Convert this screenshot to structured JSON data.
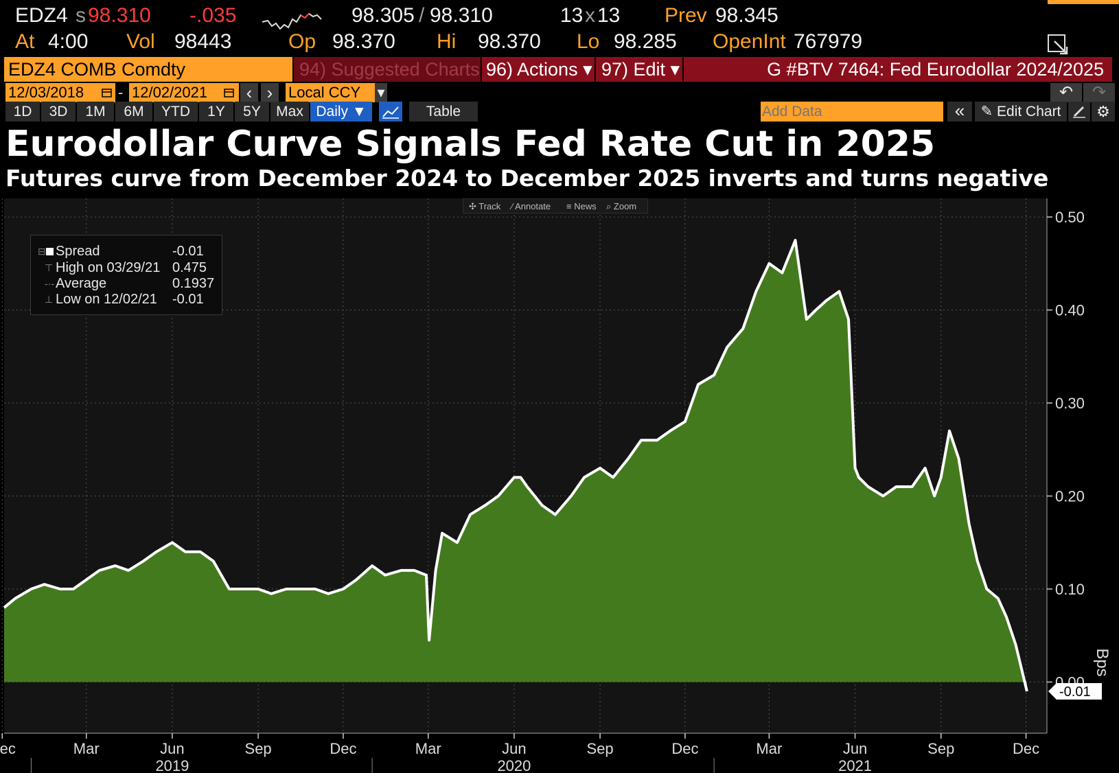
{
  "header": {
    "ticker": "EDZ4",
    "price_prefix": "s",
    "price": "98.310",
    "change": "-.035",
    "bid_ask_bid": "98.305",
    "bid_ask_sep": "/",
    "bid_ask_ask": "98.310",
    "size_a": "13",
    "size_sep": "x",
    "size_b": "13",
    "prev_label": "Prev",
    "prev_value": "98.345",
    "at_label": "At",
    "at_value": "4:00",
    "vol_label": "Vol",
    "vol_value": "98443",
    "op_label": "Op",
    "op_value": "98.370",
    "hi_label": "Hi",
    "hi_value": "98.370",
    "lo_label": "Lo",
    "lo_value": "98.285",
    "oi_label": "OpenInt",
    "oi_value": "767979"
  },
  "menubar": {
    "security": "EDZ4 COMB Comdty",
    "suggested": "94) Suggested Charts",
    "actions": "96) Actions ▾",
    "edit": "97) Edit ▾",
    "chart_id": "G #BTV 7464: Fed Eurodollar 2024/2025"
  },
  "datebar": {
    "start": "12/03/2018",
    "dash": "-",
    "end": "12/02/2021",
    "prev": "‹",
    "next": "›",
    "currency": "Local CCY",
    "currency_arrow": "▾",
    "undo": "↶",
    "redo": "↷"
  },
  "rangebar": {
    "ranges": [
      "1D",
      "3D",
      "1M",
      "6M",
      "YTD",
      "1Y",
      "5Y",
      "Max"
    ],
    "freq": "Daily ▼",
    "table": "Table",
    "add_data_placeholder": "Add Data",
    "collapse": "«",
    "edit_chart": "✎ Edit Chart",
    "settings": "⚙"
  },
  "toolbar": {
    "track": "✣ Track",
    "annotate": "⁄ Annotate",
    "news": "≡ News",
    "zoom": "⌕ Zoom"
  },
  "legend": {
    "spread_label": "Spread",
    "spread_value": "-0.01",
    "high_label": "High on 03/29/21",
    "high_value": "0.475",
    "avg_label": "Average",
    "avg_value": "0.1937",
    "low_label": "Low on 12/02/21",
    "low_value": "-0.01"
  },
  "colors": {
    "fill": "#437a1e",
    "line": "#ffffff",
    "background": "#000000",
    "plot_bg": "#141414",
    "accent": "#ffa028"
  },
  "chart_data": {
    "type": "area",
    "title": "Eurodollar Curve Signals Fed Rate Cut in 2025",
    "subtitle": "Futures curve from December 2024 to December 2025 inverts and turns negative",
    "xlabel": "",
    "ylabel": "Bps",
    "ylim": [
      -0.055,
      0.52
    ],
    "yticks": [
      0.0,
      0.1,
      0.2,
      0.3,
      0.4,
      0.5
    ],
    "ytick_labels": [
      "0.00",
      "0.10",
      "0.20",
      "0.30",
      "0.40",
      "0.50"
    ],
    "month_ticks": [
      "Dec",
      "Mar",
      "Jun",
      "Sep",
      "Dec",
      "Mar",
      "Jun",
      "Sep",
      "Dec",
      "Mar",
      "Jun",
      "Sep",
      "Dec"
    ],
    "month_dates": [
      "2018-12-01",
      "2019-03-01",
      "2019-06-01",
      "2019-09-01",
      "2019-12-01",
      "2020-03-01",
      "2020-06-01",
      "2020-09-01",
      "2020-12-01",
      "2021-03-01",
      "2021-06-01",
      "2021-09-01",
      "2021-12-01"
    ],
    "year_labels": [
      "2019",
      "2020",
      "2021"
    ],
    "year_dates": [
      "2019-06-01",
      "2020-06-01",
      "2021-06-01"
    ],
    "year_dividers": [
      "2019-01-01",
      "2020-01-01",
      "2021-01-01"
    ],
    "grid": true,
    "legend_position": "top-left",
    "last_value_label": "-0.01",
    "series": [
      {
        "name": "Spread",
        "x": [
          "2018-12-03",
          "2018-12-15",
          "2019-01-01",
          "2019-01-15",
          "2019-02-01",
          "2019-02-15",
          "2019-03-01",
          "2019-03-15",
          "2019-04-01",
          "2019-04-15",
          "2019-05-01",
          "2019-05-15",
          "2019-06-01",
          "2019-06-15",
          "2019-07-01",
          "2019-07-15",
          "2019-08-01",
          "2019-08-15",
          "2019-09-01",
          "2019-09-15",
          "2019-10-01",
          "2019-10-15",
          "2019-11-01",
          "2019-11-15",
          "2019-12-01",
          "2019-12-15",
          "2020-01-01",
          "2020-01-15",
          "2020-02-01",
          "2020-02-15",
          "2020-02-28",
          "2020-03-02",
          "2020-03-09",
          "2020-03-16",
          "2020-04-01",
          "2020-04-15",
          "2020-05-01",
          "2020-05-15",
          "2020-06-01",
          "2020-06-08",
          "2020-06-15",
          "2020-07-01",
          "2020-07-15",
          "2020-08-01",
          "2020-08-15",
          "2020-09-01",
          "2020-09-15",
          "2020-10-01",
          "2020-10-15",
          "2020-11-01",
          "2020-11-15",
          "2020-12-01",
          "2020-12-15",
          "2021-01-01",
          "2021-01-15",
          "2021-02-01",
          "2021-02-15",
          "2021-03-01",
          "2021-03-15",
          "2021-03-29",
          "2021-04-10",
          "2021-04-20",
          "2021-05-01",
          "2021-05-15",
          "2021-05-25",
          "2021-06-01",
          "2021-06-05",
          "2021-06-15",
          "2021-07-01",
          "2021-07-15",
          "2021-08-01",
          "2021-08-15",
          "2021-08-25",
          "2021-09-01",
          "2021-09-10",
          "2021-09-20",
          "2021-10-01",
          "2021-10-10",
          "2021-10-20",
          "2021-11-01",
          "2021-11-10",
          "2021-11-20",
          "2021-12-02"
        ],
        "values": [
          0.08,
          0.09,
          0.1,
          0.105,
          0.1,
          0.1,
          0.11,
          0.12,
          0.125,
          0.12,
          0.13,
          0.14,
          0.15,
          0.14,
          0.14,
          0.13,
          0.1,
          0.1,
          0.1,
          0.095,
          0.1,
          0.1,
          0.1,
          0.095,
          0.1,
          0.11,
          0.125,
          0.115,
          0.12,
          0.12,
          0.115,
          0.045,
          0.12,
          0.16,
          0.15,
          0.18,
          0.19,
          0.2,
          0.22,
          0.22,
          0.21,
          0.19,
          0.18,
          0.2,
          0.22,
          0.23,
          0.22,
          0.24,
          0.26,
          0.26,
          0.27,
          0.28,
          0.32,
          0.33,
          0.36,
          0.38,
          0.42,
          0.45,
          0.44,
          0.475,
          0.39,
          0.4,
          0.41,
          0.42,
          0.39,
          0.23,
          0.22,
          0.21,
          0.2,
          0.21,
          0.21,
          0.23,
          0.2,
          0.22,
          0.27,
          0.24,
          0.17,
          0.13,
          0.1,
          0.09,
          0.07,
          0.04,
          -0.01
        ]
      }
    ]
  }
}
